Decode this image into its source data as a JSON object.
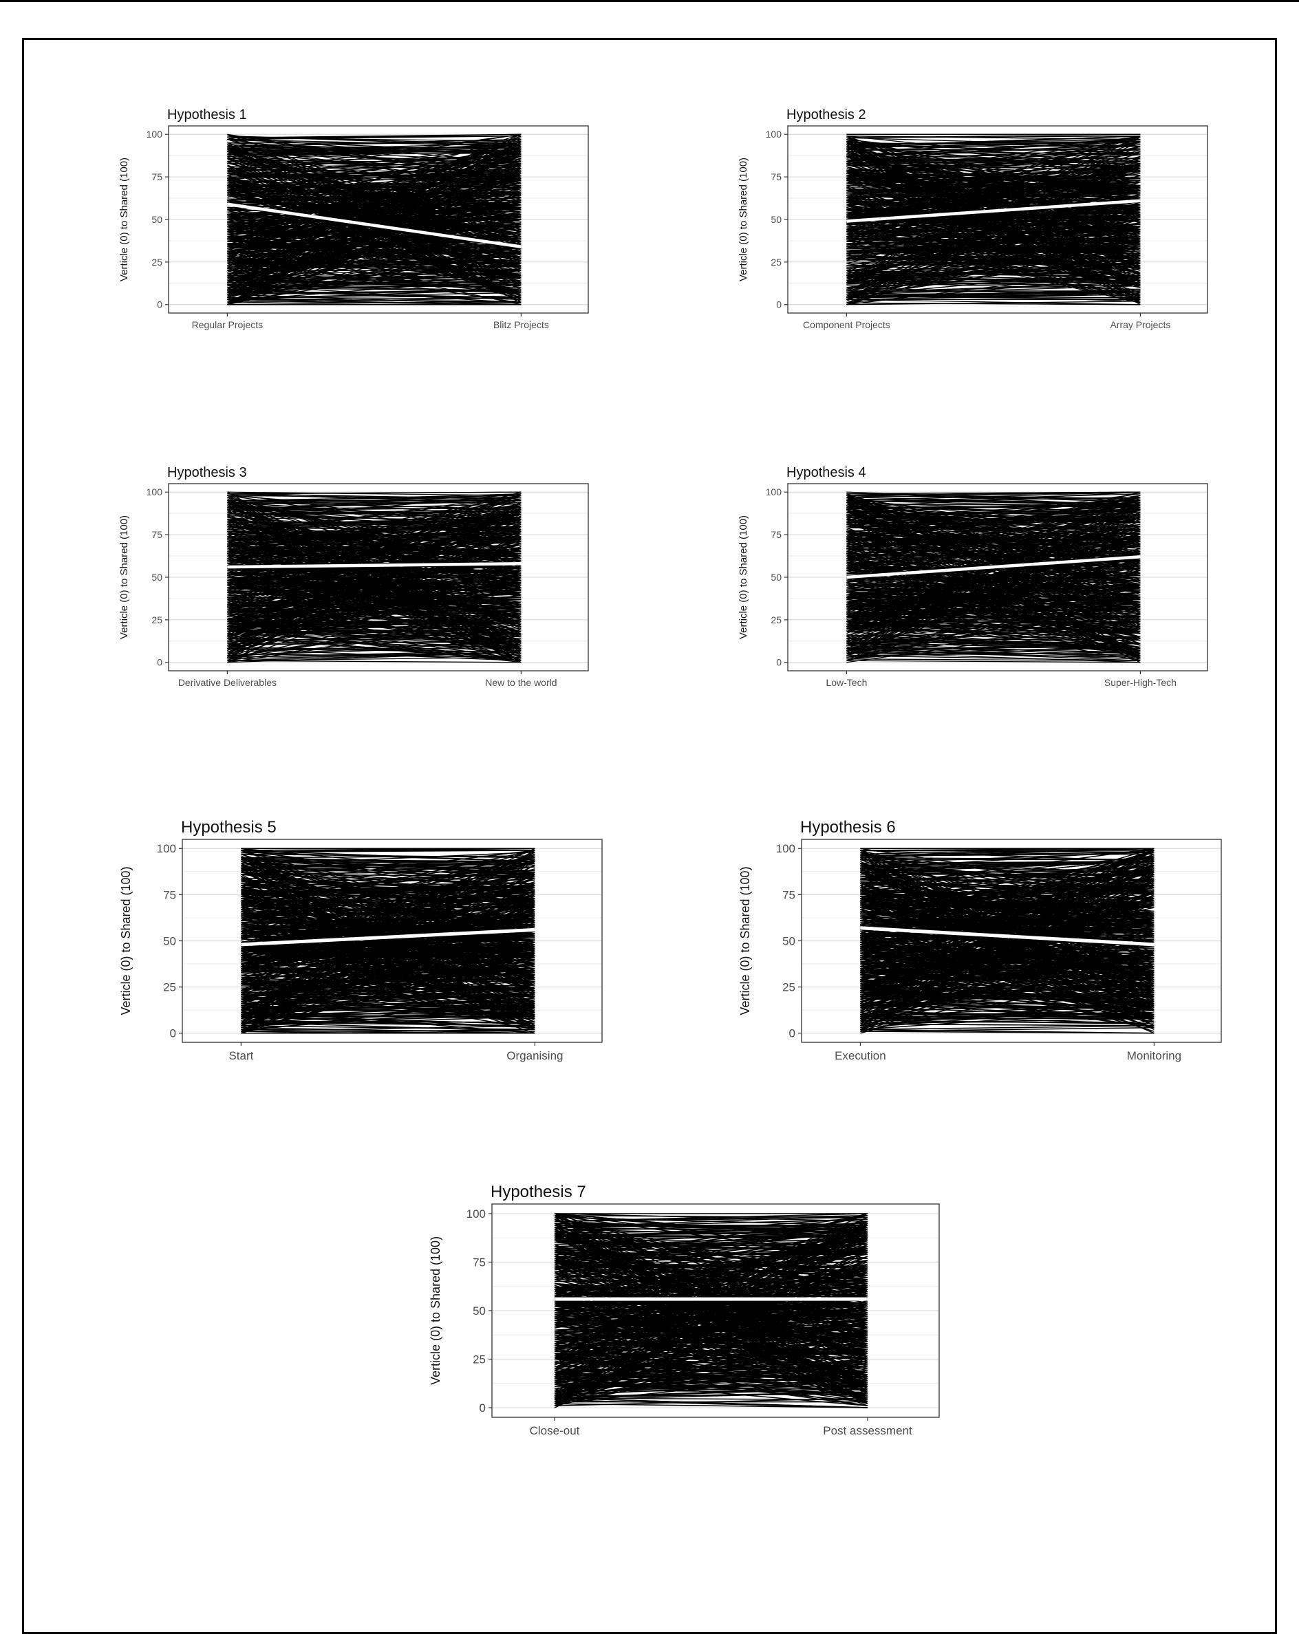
{
  "chart_data": [
    {
      "type": "line",
      "title": "Hypothesis 1",
      "ylabel": "Verticle (0) to Shared (100)",
      "xlabel": "",
      "categories": [
        "Regular Projects",
        "Blitz Projects"
      ],
      "ylim": [
        0,
        100
      ],
      "yticks": [
        0,
        25,
        50,
        75,
        100
      ],
      "grid": true,
      "trend": [
        59,
        34
      ],
      "line_color": "#000000",
      "trend_color": "#ffffff"
    },
    {
      "type": "line",
      "title": "Hypothesis 2",
      "ylabel": "Verticle (0) to Shared (100)",
      "xlabel": "",
      "categories": [
        "Component Projects",
        "Array Projects"
      ],
      "ylim": [
        0,
        100
      ],
      "yticks": [
        0,
        25,
        50,
        75,
        100
      ],
      "grid": true,
      "trend": [
        49,
        61
      ],
      "line_color": "#000000",
      "trend_color": "#ffffff"
    },
    {
      "type": "line",
      "title": "Hypothesis 3",
      "ylabel": "Verticle (0) to Shared (100)",
      "xlabel": "",
      "categories": [
        "Derivative Deliverables",
        "New to the world"
      ],
      "ylim": [
        0,
        100
      ],
      "yticks": [
        0,
        25,
        50,
        75,
        100
      ],
      "grid": true,
      "trend": [
        56,
        58
      ],
      "line_color": "#000000",
      "trend_color": "#ffffff"
    },
    {
      "type": "line",
      "title": "Hypothesis 4",
      "ylabel": "Verticle (0) to Shared (100)",
      "xlabel": "",
      "categories": [
        "Low-Tech",
        "Super-High-Tech"
      ],
      "ylim": [
        0,
        100
      ],
      "yticks": [
        0,
        25,
        50,
        75,
        100
      ],
      "grid": true,
      "trend": [
        50,
        62
      ],
      "line_color": "#000000",
      "trend_color": "#ffffff"
    },
    {
      "type": "line",
      "title": "Hypothesis 5",
      "ylabel": "Verticle (0) to Shared (100)",
      "xlabel": "",
      "categories": [
        "Start",
        "Organising"
      ],
      "ylim": [
        0,
        100
      ],
      "yticks": [
        0,
        25,
        50,
        75,
        100
      ],
      "grid": true,
      "trend": [
        48,
        56
      ],
      "line_color": "#000000",
      "trend_color": "#ffffff"
    },
    {
      "type": "line",
      "title": "Hypothesis 6",
      "ylabel": "Verticle (0) to Shared (100)",
      "xlabel": "",
      "categories": [
        "Execution",
        "Monitoring"
      ],
      "ylim": [
        0,
        100
      ],
      "yticks": [
        0,
        25,
        50,
        75,
        100
      ],
      "grid": true,
      "trend": [
        57,
        48
      ],
      "line_color": "#000000",
      "trend_color": "#ffffff"
    },
    {
      "type": "line",
      "title": "Hypothesis 7",
      "ylabel": "Verticle (0) to Shared (100)",
      "xlabel": "",
      "categories": [
        "Close-out",
        "Post assessment"
      ],
      "ylim": [
        0,
        100
      ],
      "yticks": [
        0,
        25,
        50,
        75,
        100
      ],
      "grid": true,
      "trend": [
        56,
        56
      ],
      "line_color": "#000000",
      "trend_color": "#ffffff"
    }
  ]
}
